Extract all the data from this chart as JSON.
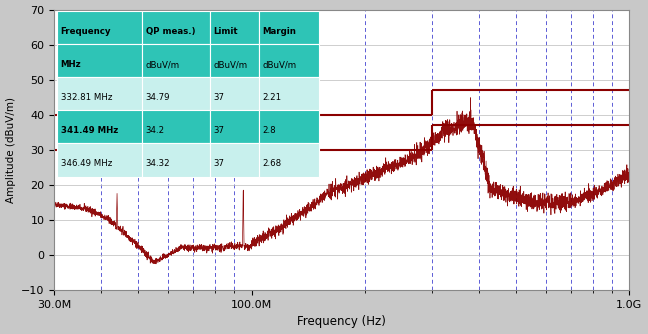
{
  "xlabel": "Frequency (Hz)",
  "ylabel": "Amplitude (dBuV/m)",
  "xmin": 30000000,
  "xmax": 1000000000,
  "ymin": -10,
  "ymax": 70,
  "yticks": [
    -10,
    0,
    10,
    20,
    30,
    40,
    50,
    60,
    70
  ],
  "xtick_labels": [
    "30.0M",
    "100.0M",
    "1.0G"
  ],
  "xtick_positions": [
    30000000,
    100000000,
    1000000000
  ],
  "limit_line_1_y": 30.0,
  "limit_line_2_y": 37.0,
  "limit_line_top_1_y": 40.0,
  "limit_line_top_2_y": 47.0,
  "limit_step_x": 300000000,
  "limit_color": "#8B0000",
  "signal_color": "#8B0000",
  "fig_bg_color": "#c8c8c8",
  "plot_bg_color": "#ffffff",
  "dashed_line_color": "#3333cc",
  "dashed_line_positions": [
    40000000,
    50000000,
    60000000,
    70000000,
    80000000,
    90000000,
    200000000,
    300000000,
    400000000,
    500000000,
    600000000,
    700000000,
    800000000,
    900000000
  ],
  "table_teal": "#2ec4b6",
  "table_light": "#c8f0ed",
  "table_headers": [
    "Frequency",
    "QP meas.)",
    "Limit",
    "Margin"
  ],
  "table_subheaders": [
    "MHz",
    "dBuV/m",
    "dBuV/m",
    "dBuV/m"
  ],
  "table_data": [
    [
      "332.81 MHz",
      "34.79",
      "37",
      "2.21"
    ],
    [
      "341.49 MHz",
      "34.2",
      "37",
      "2.8"
    ],
    [
      "346.49 MHz",
      "34.32",
      "37",
      "2.68"
    ]
  ],
  "table_row_is_teal": [
    true,
    true,
    false,
    true,
    false
  ]
}
